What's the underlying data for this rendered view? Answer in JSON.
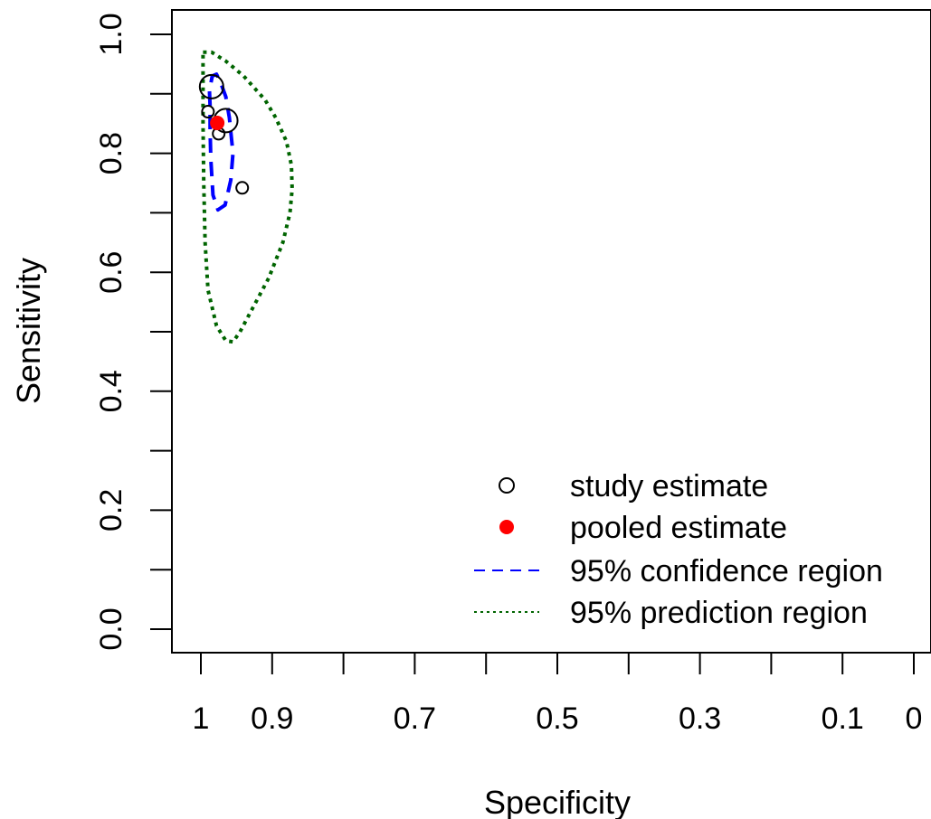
{
  "chart_data": {
    "type": "scatter",
    "xlabel": "Specificity",
    "ylabel": "Sensitivity",
    "x_axis_reversed": true,
    "xlim": [
      1.0,
      0.0
    ],
    "ylim": [
      0.0,
      1.0
    ],
    "x_ticks": [
      1.0,
      0.9,
      0.8,
      0.7,
      0.6,
      0.5,
      0.4,
      0.3,
      0.2,
      0.1,
      0.0
    ],
    "x_tick_labels": [
      "1",
      "0.9",
      "",
      "0.7",
      "",
      "0.5",
      "",
      "0.3",
      "",
      "0.1",
      "0"
    ],
    "y_ticks": [
      0.0,
      0.1,
      0.2,
      0.3,
      0.4,
      0.5,
      0.6,
      0.7,
      0.8,
      0.9,
      1.0
    ],
    "y_tick_labels": [
      "0.0",
      "",
      "0.2",
      "",
      "0.4",
      "",
      "0.6",
      "",
      "0.8",
      "",
      "1.0"
    ],
    "grid": false,
    "legend_position": "bottom-right",
    "legend": [
      {
        "label": "study estimate",
        "symbol": "open-circle",
        "color": "#000000"
      },
      {
        "label": "pooled estimate",
        "symbol": "filled-circle",
        "color": "#ff0000"
      },
      {
        "label": "95% confidence region",
        "symbol": "dashed-line",
        "color": "#0000ff"
      },
      {
        "label": "95% prediction region",
        "symbol": "dotted-line",
        "color": "#006400"
      }
    ],
    "study_estimates": [
      {
        "specificity": 0.985,
        "sensitivity": 0.912,
        "size": "large"
      },
      {
        "specificity": 0.99,
        "sensitivity": 0.87,
        "size": "small"
      },
      {
        "specificity": 0.975,
        "sensitivity": 0.833,
        "size": "small"
      },
      {
        "specificity": 0.965,
        "sensitivity": 0.855,
        "size": "large"
      },
      {
        "specificity": 0.942,
        "sensitivity": 0.742,
        "size": "small"
      }
    ],
    "pooled_estimate": {
      "specificity": 0.977,
      "sensitivity": 0.851
    },
    "confidence_region": {
      "color": "#0000ff",
      "points": [
        [
          0.987,
          0.88
        ],
        [
          0.988,
          0.905
        ],
        [
          0.984,
          0.93
        ],
        [
          0.978,
          0.933
        ],
        [
          0.972,
          0.918
        ],
        [
          0.965,
          0.895
        ],
        [
          0.96,
          0.86
        ],
        [
          0.955,
          0.8
        ],
        [
          0.958,
          0.755
        ],
        [
          0.966,
          0.713
        ],
        [
          0.976,
          0.705
        ],
        [
          0.983,
          0.73
        ],
        [
          0.986,
          0.79
        ],
        [
          0.987,
          0.84
        ],
        [
          0.987,
          0.88
        ]
      ]
    },
    "prediction_region": {
      "color": "#006400",
      "points": [
        [
          0.997,
          0.97
        ],
        [
          0.985,
          0.97
        ],
        [
          0.965,
          0.955
        ],
        [
          0.94,
          0.93
        ],
        [
          0.91,
          0.89
        ],
        [
          0.895,
          0.86
        ],
        [
          0.88,
          0.82
        ],
        [
          0.873,
          0.78
        ],
        [
          0.872,
          0.74
        ],
        [
          0.875,
          0.7
        ],
        [
          0.885,
          0.65
        ],
        [
          0.905,
          0.59
        ],
        [
          0.925,
          0.545
        ],
        [
          0.945,
          0.5
        ],
        [
          0.955,
          0.483
        ],
        [
          0.965,
          0.485
        ],
        [
          0.978,
          0.51
        ],
        [
          0.99,
          0.57
        ],
        [
          0.994,
          0.65
        ],
        [
          0.996,
          0.75
        ],
        [
          0.997,
          0.85
        ],
        [
          0.997,
          0.92
        ],
        [
          0.997,
          0.97
        ]
      ]
    }
  }
}
